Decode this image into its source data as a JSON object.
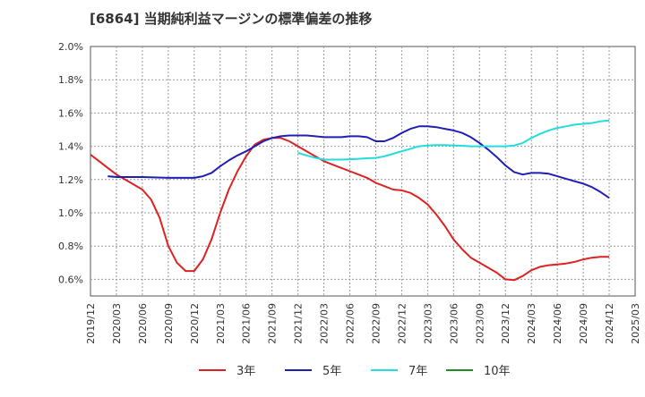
{
  "chart_data": {
    "type": "line",
    "title": "[6864]  当期純利益マージンの標準偏差の推移",
    "xlabel": "",
    "ylabel": "",
    "x_ticks": [
      "2019/12",
      "2020/03",
      "2020/06",
      "2020/09",
      "2020/12",
      "2021/03",
      "2021/06",
      "2021/09",
      "2021/12",
      "2022/03",
      "2022/06",
      "2022/09",
      "2022/12",
      "2023/03",
      "2023/06",
      "2023/09",
      "2023/12",
      "2024/03",
      "2024/06",
      "2024/09",
      "2024/12",
      "2025/03"
    ],
    "y_ticks": [
      "0.6%",
      "0.8%",
      "1.0%",
      "1.2%",
      "1.4%",
      "1.6%",
      "1.8%",
      "2.0%"
    ],
    "ylim": [
      0.5,
      2.0
    ],
    "grid": true,
    "legend_position": "bottom",
    "series": [
      {
        "name": "3年",
        "color": "#dd2222",
        "points": [
          [
            "2019/12",
            1.35
          ],
          [
            "2020/01",
            1.31
          ],
          [
            "2020/02",
            1.27
          ],
          [
            "2020/03",
            1.23
          ],
          [
            "2020/04",
            1.2
          ],
          [
            "2020/05",
            1.17
          ],
          [
            "2020/06",
            1.14
          ],
          [
            "2020/07",
            1.08
          ],
          [
            "2020/08",
            0.97
          ],
          [
            "2020/09",
            0.8
          ],
          [
            "2020/10",
            0.7
          ],
          [
            "2020/11",
            0.65
          ],
          [
            "2020/12",
            0.65
          ],
          [
            "2021/01",
            0.72
          ],
          [
            "2021/02",
            0.84
          ],
          [
            "2021/03",
            1.0
          ],
          [
            "2021/04",
            1.14
          ],
          [
            "2021/05",
            1.25
          ],
          [
            "2021/06",
            1.34
          ],
          [
            "2021/07",
            1.41
          ],
          [
            "2021/08",
            1.44
          ],
          [
            "2021/09",
            1.45
          ],
          [
            "2021/10",
            1.45
          ],
          [
            "2021/11",
            1.43
          ],
          [
            "2021/12",
            1.4
          ],
          [
            "2022/01",
            1.37
          ],
          [
            "2022/02",
            1.34
          ],
          [
            "2022/03",
            1.31
          ],
          [
            "2022/04",
            1.29
          ],
          [
            "2022/05",
            1.27
          ],
          [
            "2022/06",
            1.25
          ],
          [
            "2022/07",
            1.23
          ],
          [
            "2022/08",
            1.21
          ],
          [
            "2022/09",
            1.18
          ],
          [
            "2022/10",
            1.16
          ],
          [
            "2022/11",
            1.14
          ],
          [
            "2022/12",
            1.135
          ],
          [
            "2023/01",
            1.12
          ],
          [
            "2023/02",
            1.09
          ],
          [
            "2023/03",
            1.05
          ],
          [
            "2023/04",
            0.99
          ],
          [
            "2023/05",
            0.92
          ],
          [
            "2023/06",
            0.84
          ],
          [
            "2023/07",
            0.78
          ],
          [
            "2023/08",
            0.73
          ],
          [
            "2023/09",
            0.7
          ],
          [
            "2023/10",
            0.67
          ],
          [
            "2023/11",
            0.64
          ],
          [
            "2023/12",
            0.6
          ],
          [
            "2024/01",
            0.595
          ],
          [
            "2024/02",
            0.62
          ],
          [
            "2024/03",
            0.655
          ],
          [
            "2024/04",
            0.675
          ],
          [
            "2024/05",
            0.685
          ],
          [
            "2024/06",
            0.69
          ],
          [
            "2024/07",
            0.695
          ],
          [
            "2024/08",
            0.705
          ],
          [
            "2024/09",
            0.72
          ],
          [
            "2024/10",
            0.73
          ],
          [
            "2024/11",
            0.735
          ],
          [
            "2024/12",
            0.735
          ]
        ]
      },
      {
        "name": "5年",
        "color": "#1f1fb4",
        "points": [
          [
            "2020/02",
            1.22
          ],
          [
            "2020/03",
            1.215
          ],
          [
            "2020/06",
            1.215
          ],
          [
            "2020/09",
            1.21
          ],
          [
            "2020/12",
            1.21
          ],
          [
            "2021/01",
            1.22
          ],
          [
            "2021/02",
            1.24
          ],
          [
            "2021/03",
            1.28
          ],
          [
            "2021/04",
            1.315
          ],
          [
            "2021/05",
            1.345
          ],
          [
            "2021/06",
            1.37
          ],
          [
            "2021/07",
            1.4
          ],
          [
            "2021/08",
            1.43
          ],
          [
            "2021/09",
            1.45
          ],
          [
            "2021/10",
            1.46
          ],
          [
            "2021/11",
            1.465
          ],
          [
            "2021/12",
            1.465
          ],
          [
            "2022/01",
            1.465
          ],
          [
            "2022/02",
            1.46
          ],
          [
            "2022/03",
            1.455
          ],
          [
            "2022/04",
            1.455
          ],
          [
            "2022/05",
            1.455
          ],
          [
            "2022/06",
            1.46
          ],
          [
            "2022/07",
            1.46
          ],
          [
            "2022/08",
            1.455
          ],
          [
            "2022/09",
            1.43
          ],
          [
            "2022/10",
            1.43
          ],
          [
            "2022/11",
            1.45
          ],
          [
            "2022/12",
            1.48
          ],
          [
            "2023/01",
            1.505
          ],
          [
            "2023/02",
            1.52
          ],
          [
            "2023/03",
            1.52
          ],
          [
            "2023/04",
            1.515
          ],
          [
            "2023/05",
            1.505
          ],
          [
            "2023/06",
            1.495
          ],
          [
            "2023/07",
            1.48
          ],
          [
            "2023/08",
            1.455
          ],
          [
            "2023/09",
            1.42
          ],
          [
            "2023/10",
            1.38
          ],
          [
            "2023/11",
            1.335
          ],
          [
            "2023/12",
            1.285
          ],
          [
            "2024/01",
            1.245
          ],
          [
            "2024/02",
            1.23
          ],
          [
            "2024/03",
            1.24
          ],
          [
            "2024/04",
            1.24
          ],
          [
            "2024/05",
            1.235
          ],
          [
            "2024/06",
            1.22
          ],
          [
            "2024/07",
            1.205
          ],
          [
            "2024/08",
            1.19
          ],
          [
            "2024/09",
            1.175
          ],
          [
            "2024/10",
            1.155
          ],
          [
            "2024/11",
            1.125
          ],
          [
            "2024/12",
            1.09
          ]
        ]
      },
      {
        "name": "7年",
        "color": "#22dddd",
        "points": [
          [
            "2021/12",
            1.36
          ],
          [
            "2022/01",
            1.345
          ],
          [
            "2022/02",
            1.33
          ],
          [
            "2022/03",
            1.32
          ],
          [
            "2022/04",
            1.32
          ],
          [
            "2022/05",
            1.32
          ],
          [
            "2022/06",
            1.322
          ],
          [
            "2022/07",
            1.325
          ],
          [
            "2022/08",
            1.328
          ],
          [
            "2022/09",
            1.33
          ],
          [
            "2022/10",
            1.34
          ],
          [
            "2022/11",
            1.355
          ],
          [
            "2022/12",
            1.37
          ],
          [
            "2023/01",
            1.385
          ],
          [
            "2023/02",
            1.4
          ],
          [
            "2023/03",
            1.405
          ],
          [
            "2023/04",
            1.407
          ],
          [
            "2023/05",
            1.407
          ],
          [
            "2023/06",
            1.405
          ],
          [
            "2023/07",
            1.403
          ],
          [
            "2023/08",
            1.4
          ],
          [
            "2023/09",
            1.4
          ],
          [
            "2023/10",
            1.4
          ],
          [
            "2023/11",
            1.4
          ],
          [
            "2023/12",
            1.4
          ],
          [
            "2024/01",
            1.405
          ],
          [
            "2024/02",
            1.42
          ],
          [
            "2024/03",
            1.45
          ],
          [
            "2024/04",
            1.475
          ],
          [
            "2024/05",
            1.495
          ],
          [
            "2024/06",
            1.51
          ],
          [
            "2024/07",
            1.52
          ],
          [
            "2024/08",
            1.53
          ],
          [
            "2024/09",
            1.535
          ],
          [
            "2024/10",
            1.54
          ],
          [
            "2024/11",
            1.55
          ],
          [
            "2024/12",
            1.555
          ]
        ]
      },
      {
        "name": "10年",
        "color": "#228b22",
        "points": []
      }
    ]
  }
}
